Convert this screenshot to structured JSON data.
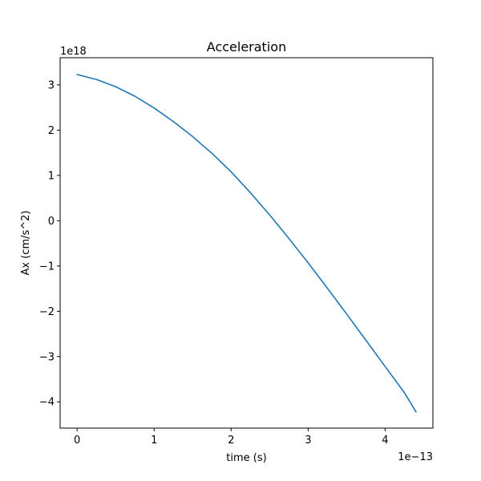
{
  "chart_data": {
    "type": "line",
    "title": "Acceleration",
    "xlabel": "time (s)",
    "ylabel": "Ax (cm/s^2)",
    "x_offset_label": "1e−13",
    "y_offset_label": "1e18",
    "xlim": [
      -0.22,
      4.62
    ],
    "ylim": [
      -4.58,
      3.6
    ],
    "xticks": [
      0,
      1,
      2,
      3,
      4
    ],
    "xtick_labels": [
      "0",
      "1",
      "2",
      "3",
      "4"
    ],
    "yticks": [
      3,
      2,
      1,
      0,
      -1,
      -2,
      -3,
      -4
    ],
    "ytick_labels": [
      "3",
      "2",
      "1",
      "0",
      "−1",
      "−2",
      "−3",
      "−4"
    ],
    "grid": false,
    "line_color": "#1f77b4",
    "series": [
      {
        "x": [
          0,
          0.25,
          0.5,
          0.75,
          1.0,
          1.25,
          1.5,
          1.75,
          2.0,
          2.25,
          2.5,
          2.75,
          3.0,
          3.25,
          3.5,
          3.75,
          4.0,
          4.25,
          4.4
        ],
        "y": [
          3.23,
          3.12,
          2.96,
          2.75,
          2.49,
          2.19,
          1.86,
          1.49,
          1.08,
          0.62,
          0.13,
          -0.39,
          -0.93,
          -1.49,
          -2.06,
          -2.64,
          -3.22,
          -3.8,
          -4.22
        ]
      }
    ]
  }
}
